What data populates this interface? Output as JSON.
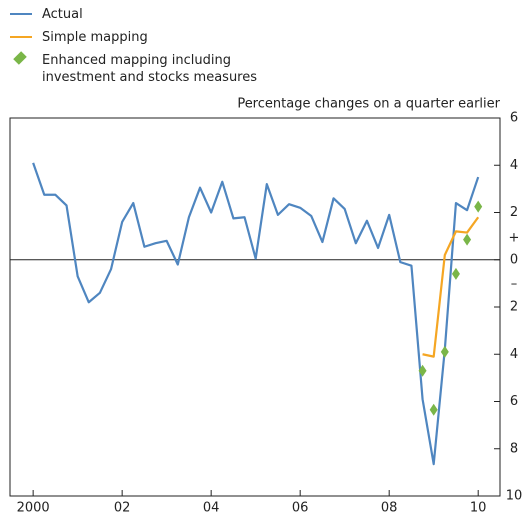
{
  "chart_data": {
    "type": "line",
    "y_axis_label": "Percentage changes on a quarter earlier",
    "above_zero_label": "+",
    "below_zero_label": "–",
    "xlim": [
      1999.48,
      2010.49
    ],
    "xticks": [
      {
        "value": 2000,
        "label": "2000"
      },
      {
        "value": 2002,
        "label": "02"
      },
      {
        "value": 2004,
        "label": "04"
      },
      {
        "value": 2006,
        "label": "06"
      },
      {
        "value": 2008,
        "label": "08"
      },
      {
        "value": 2010,
        "label": "10"
      }
    ],
    "ylim": [
      -10,
      6
    ],
    "yticks": [
      6,
      4,
      2,
      0,
      {
        "value": -2,
        "label": "2"
      },
      {
        "value": -4,
        "label": "4"
      },
      {
        "value": -6,
        "label": "6"
      },
      {
        "value": -8,
        "label": "8"
      },
      {
        "value": -10,
        "label": "10"
      }
    ],
    "series": [
      {
        "name": "Actual",
        "color": "#4f86c0",
        "mode": "line",
        "x": [
          2000,
          2000.25,
          2000.5,
          2000.75,
          2001,
          2001.25,
          2001.5,
          2001.75,
          2002,
          2002.25,
          2002.5,
          2002.75,
          2003,
          2003.25,
          2003.5,
          2003.75,
          2004,
          2004.25,
          2004.5,
          2004.75,
          2005,
          2005.25,
          2005.5,
          2005.75,
          2006,
          2006.25,
          2006.5,
          2006.75,
          2007,
          2007.25,
          2007.5,
          2007.75,
          2008,
          2008.25,
          2008.5,
          2008.75,
          2009,
          2009.25,
          2009.5,
          2009.75,
          2010
        ],
        "values": [
          4.1,
          2.75,
          2.75,
          2.3,
          -0.7,
          -1.8,
          -1.4,
          -0.4,
          1.6,
          2.4,
          0.55,
          0.7,
          0.8,
          -0.2,
          1.8,
          3.05,
          2.0,
          3.3,
          1.75,
          1.8,
          0.05,
          3.2,
          1.9,
          2.35,
          2.2,
          1.85,
          0.75,
          2.6,
          2.15,
          0.7,
          1.65,
          0.5,
          1.9,
          -0.1,
          -0.25,
          -5.9,
          -8.65,
          -3.8,
          2.4,
          2.1,
          3.5
        ]
      },
      {
        "name": "Simple mapping",
        "color": "#f5a623",
        "mode": "line",
        "x": [
          2008.75,
          2009,
          2009.25,
          2009.5,
          2009.75,
          2010
        ],
        "values": [
          -4.0,
          -4.1,
          0.2,
          1.2,
          1.15,
          1.8
        ]
      },
      {
        "name": "Enhanced mapping including investment and stocks measures",
        "color": "#7ab648",
        "mode": "markers",
        "x": [
          2008.75,
          2009,
          2009.25,
          2009.5,
          2009.75,
          2010
        ],
        "values": [
          -4.7,
          -6.35,
          -3.9,
          -0.6,
          0.85,
          2.25
        ]
      }
    ]
  }
}
